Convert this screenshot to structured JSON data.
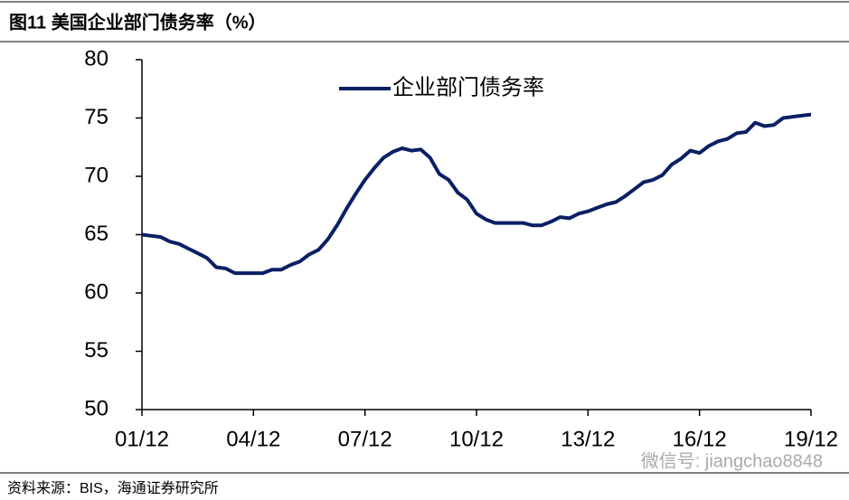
{
  "chart_data": {
    "type": "line",
    "title": "图11 美国企业部门债务率（%）",
    "source": "资料来源：BIS，海通证券研究所",
    "watermark": "微信号: jiangchao8848",
    "categories": [
      "01/12",
      null,
      null,
      null,
      null,
      null,
      null,
      null,
      null,
      null,
      null,
      null,
      "04/12",
      null,
      null,
      null,
      null,
      null,
      null,
      null,
      null,
      null,
      null,
      null,
      "07/12",
      null,
      null,
      null,
      null,
      null,
      null,
      null,
      null,
      null,
      null,
      null,
      "10/12",
      null,
      null,
      null,
      null,
      null,
      null,
      null,
      null,
      null,
      null,
      null,
      "13/12",
      null,
      null,
      null,
      null,
      null,
      null,
      null,
      null,
      null,
      null,
      null,
      "16/12",
      null,
      null,
      null,
      null,
      null,
      null,
      null,
      null,
      null,
      null,
      null,
      "19/12"
    ],
    "series": [
      {
        "name": "企业部门债务率",
        "color": "#0b1f65",
        "values": [
          65.0,
          64.9,
          64.8,
          64.4,
          64.2,
          63.8,
          63.4,
          63.0,
          62.2,
          62.1,
          61.7,
          61.7,
          61.7,
          61.7,
          62.0,
          62.0,
          62.4,
          62.7,
          63.3,
          63.7,
          64.6,
          65.8,
          67.2,
          68.5,
          69.7,
          70.7,
          71.6,
          72.1,
          72.4,
          72.2,
          72.3,
          71.6,
          70.2,
          69.7,
          68.6,
          68.0,
          66.8,
          66.3,
          66.0,
          66.0,
          66.0,
          66.0,
          65.8,
          65.8,
          66.1,
          66.5,
          66.4,
          66.8,
          67.0,
          67.3,
          67.6,
          67.8,
          68.3,
          68.9,
          69.5,
          69.7,
          70.1,
          71.0,
          71.5,
          72.2,
          72.0,
          72.6,
          73.0,
          73.2,
          73.7,
          73.8,
          74.6,
          74.3,
          74.4,
          75.0,
          75.1,
          75.2,
          75.3
        ]
      }
    ],
    "ylim": [
      50,
      80
    ],
    "yticks": [
      50,
      55,
      60,
      65,
      70,
      75,
      80
    ],
    "grid": false
  }
}
